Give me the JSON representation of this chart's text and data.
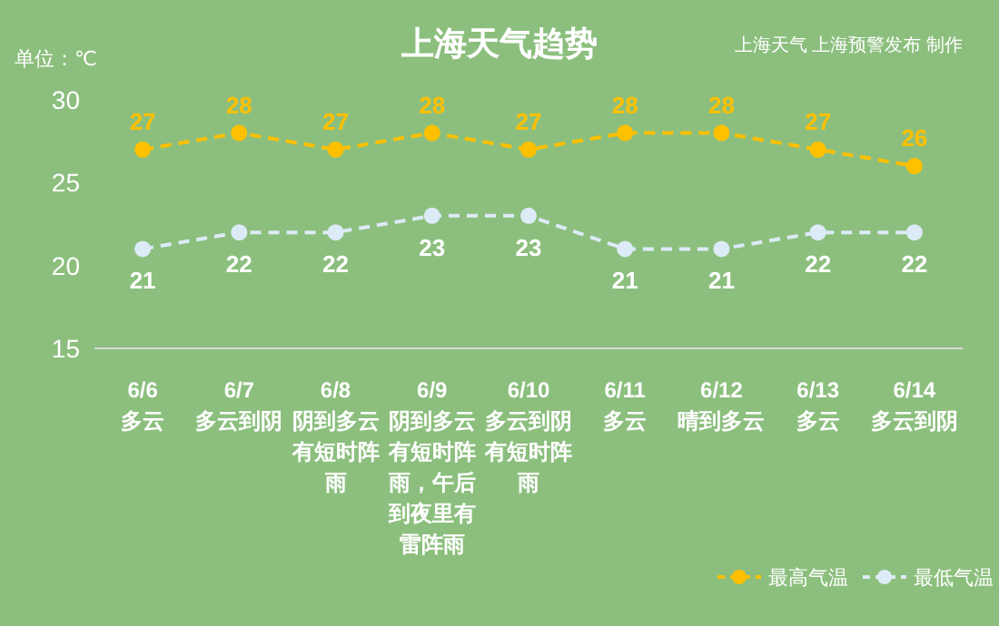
{
  "chart_data": {
    "type": "line",
    "title": "上海天气趋势",
    "ylabel": "单位：℃",
    "annotations": [
      "上海天气  上海预警发布 制作"
    ],
    "categories": [
      "6/6\n多云",
      "6/7\n多云到阴",
      "6/8\n阴到多云有短时阵雨",
      "6/9\n阴到多云有短时阵雨，午后到夜里有雷阵雨",
      "6/10\n多云到阴有短时阵雨",
      "6/11\n多云",
      "6/12\n晴到多云",
      "6/13\n多云",
      "6/14\n多云到阴"
    ],
    "series": [
      {
        "name": "最高气温",
        "color": "#ffc000",
        "values": [
          27,
          28,
          27,
          28,
          27,
          28,
          28,
          27,
          26
        ]
      },
      {
        "name": "最低气温",
        "color": "#ddebf7",
        "values": [
          21,
          22,
          22,
          23,
          23,
          21,
          21,
          22,
          22
        ]
      }
    ],
    "ylim": [
      15,
      30
    ],
    "yticks": [
      15,
      20,
      25,
      30
    ],
    "data_labels": true,
    "legend": "bottom right",
    "marker": "circle",
    "line_style": "dashed"
  }
}
